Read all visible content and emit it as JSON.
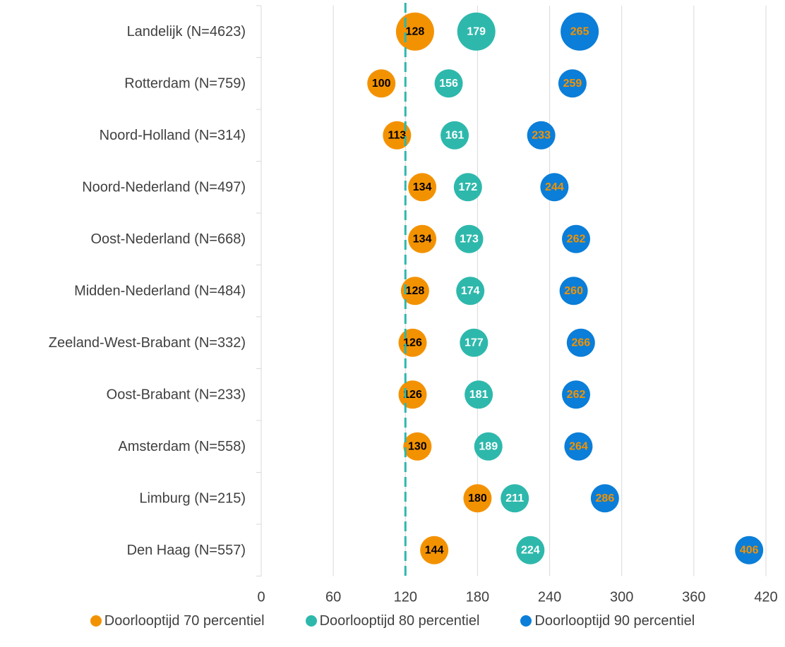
{
  "chart_data": {
    "type": "scatter",
    "title": "",
    "xlabel": "",
    "ylabel": "",
    "xlim": [
      0,
      420
    ],
    "xticks": [
      0,
      60,
      120,
      180,
      240,
      300,
      360,
      420
    ],
    "grid": true,
    "legend_position": "bottom",
    "reference_line": {
      "x": 120,
      "color": "#2EB8AC",
      "style": "dashed"
    },
    "categories": [
      "Landelijk (N=4623)",
      "Rotterdam (N=759)",
      "Noord-Holland (N=314)",
      "Noord-Nederland (N=497)",
      "Oost-Nederland (N=668)",
      "Midden-Nederland (N=484)",
      "Zeeland-West-Brabant (N=332)",
      "Oost-Brabant (N=233)",
      "Amsterdam (N=558)",
      "Limburg (N=215)",
      "Den Haag (N=557)"
    ],
    "series": [
      {
        "name": "Doorlooptijd 70 percentiel",
        "color": "#F39200",
        "label_color": "#000000",
        "values": [
          128,
          100,
          113,
          134,
          134,
          128,
          126,
          126,
          130,
          180,
          144
        ]
      },
      {
        "name": "Doorlooptijd 80 percentiel",
        "color": "#2EB8AC",
        "label_color": "#FFFFFF",
        "values": [
          179,
          156,
          161,
          172,
          173,
          174,
          177,
          181,
          189,
          211,
          224
        ]
      },
      {
        "name": "Doorlooptijd 90 percentiel",
        "color": "#0A7ED8",
        "label_color": "#F39200",
        "values": [
          265,
          259,
          233,
          244,
          262,
          260,
          266,
          262,
          264,
          286,
          406
        ]
      }
    ]
  }
}
